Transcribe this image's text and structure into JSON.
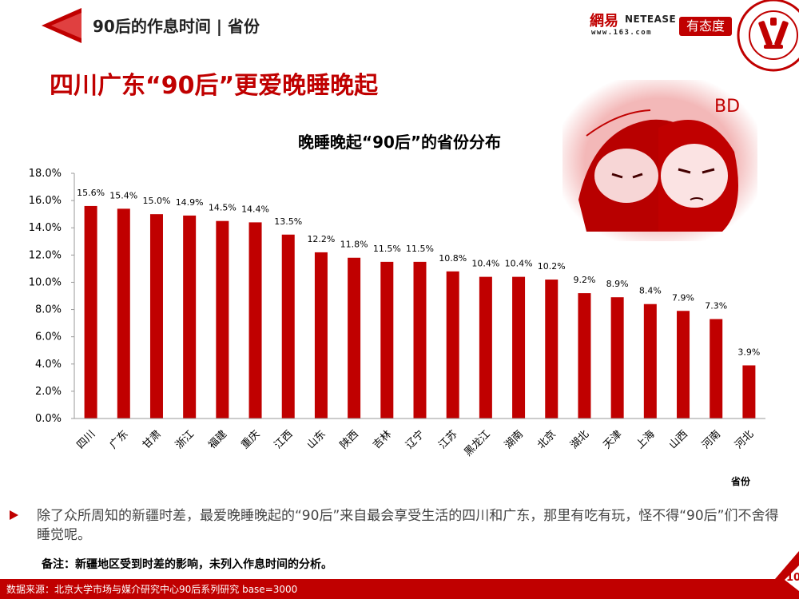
{
  "header": {
    "title": "90后的作息时间 | 省份",
    "brand_color": "#c00000"
  },
  "logos": {
    "netease_cn": "網易",
    "netease_en": "NETEASE",
    "netease_url": "www.163.com",
    "youtaidu": "有态度",
    "pku_icon": "peking-university-seal-icon"
  },
  "main_title": "四川广东“90后”更爱晚睡晚起",
  "chart_title": "晚睡晚起“90后”的省份分布",
  "chart_data": {
    "type": "bar",
    "title": "晚睡晚起“90后”的省份分布",
    "xlabel": "省份",
    "ylabel": "",
    "categories": [
      "四川",
      "广东",
      "甘肃",
      "浙江",
      "福建",
      "重庆",
      "江西",
      "山东",
      "陕西",
      "吉林",
      "辽宁",
      "江苏",
      "黑龙江",
      "湖南",
      "北京",
      "湖北",
      "天津",
      "上海",
      "山西",
      "河南",
      "河北"
    ],
    "values": [
      15.6,
      15.4,
      15.0,
      14.9,
      14.5,
      14.4,
      13.5,
      12.2,
      11.8,
      11.5,
      11.5,
      10.8,
      10.4,
      10.4,
      10.2,
      9.2,
      8.9,
      8.4,
      7.9,
      7.3,
      3.9
    ],
    "value_labels": [
      "15.6%",
      "15.4%",
      "15.0%",
      "14.9%",
      "14.5%",
      "14.4%",
      "13.5%",
      "12.2%",
      "11.8%",
      "11.5%",
      "11.5%",
      "10.8%",
      "10.4%",
      "10.4%",
      "10.2%",
      "9.2%",
      "8.9%",
      "8.4%",
      "7.9%",
      "7.3%",
      "3.9%"
    ],
    "ylim": [
      0,
      18
    ],
    "yticks": [
      "0.0%",
      "2.0%",
      "4.0%",
      "6.0%",
      "8.0%",
      "10.0%",
      "12.0%",
      "14.0%",
      "16.0%",
      "18.0%"
    ],
    "grid": false,
    "legend": "none",
    "bar_color": "#c00000"
  },
  "bullet_text": "除了众所周知的新疆时差，最爱晚睡晚起的“90后”来自最会享受生活的四川和广东，那里有吃有玩，怪不得“90后”们不舍得睡觉呢。",
  "note": "备注：新疆地区受到时差的影响，未列入作息时间的分析。",
  "footer": {
    "source": "数据来源：北京大学市场与媒介研究中心90后系列研究 base=3000",
    "page_number": "10"
  },
  "illustration_icon": "cartoon-sleepy-girls-illustration"
}
